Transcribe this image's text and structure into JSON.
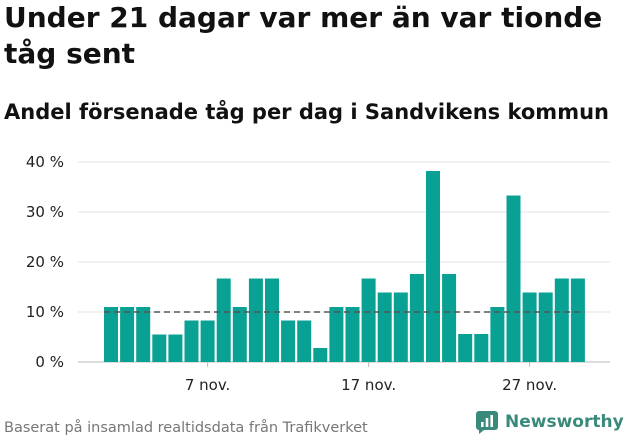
{
  "title": "Under 21 dagar var mer än var tionde tåg sent",
  "subtitle": "Andel försenade tåg per dag i Sandvikens kommun",
  "source": "Baserat på insamlad realtidsdata från Trafikverket",
  "brand": {
    "name": "Newsworthy",
    "icon": "newsworthy-logo-icon",
    "color": "#3a8a7c"
  },
  "colors": {
    "bar": "#0aa195",
    "grid": "#e3e3e3",
    "reference_line": "#555555"
  },
  "chart_data": {
    "type": "bar",
    "title": "Andel försenade tåg per dag i Sandvikens kommun",
    "xlabel": "",
    "ylabel": "",
    "ylim": [
      0,
      40
    ],
    "y_ticks": [
      0,
      10,
      20,
      30,
      40
    ],
    "y_tick_labels": [
      "0 %",
      "10 %",
      "20 %",
      "30 %",
      "40 %"
    ],
    "x_tick_labels": [
      {
        "label": "7 nov.",
        "category": "7 nov."
      },
      {
        "label": "17 nov.",
        "category": "17 nov."
      },
      {
        "label": "27 nov.",
        "category": "27 nov."
      }
    ],
    "categories": [
      "1 nov.",
      "2 nov.",
      "3 nov.",
      "4 nov.",
      "5 nov.",
      "6 nov.",
      "7 nov.",
      "8 nov.",
      "9 nov.",
      "10 nov.",
      "11 nov.",
      "12 nov.",
      "13 nov.",
      "14 nov.",
      "15 nov.",
      "16 nov.",
      "17 nov.",
      "18 nov.",
      "19 nov.",
      "20 nov.",
      "21 nov.",
      "22 nov.",
      "23 nov.",
      "24 nov.",
      "25 nov.",
      "26 nov.",
      "27 nov.",
      "28 nov.",
      "29 nov.",
      "30 nov."
    ],
    "values": [
      11,
      11,
      11,
      5.5,
      5.5,
      8.3,
      8.3,
      16.7,
      11,
      16.7,
      16.7,
      8.3,
      8.3,
      2.8,
      11,
      11,
      16.7,
      13.9,
      13.9,
      17.6,
      38.2,
      17.6,
      5.6,
      5.6,
      11,
      33.3,
      13.9,
      13.9,
      16.7,
      16.7
    ],
    "reference_line": 10,
    "grid": true
  }
}
